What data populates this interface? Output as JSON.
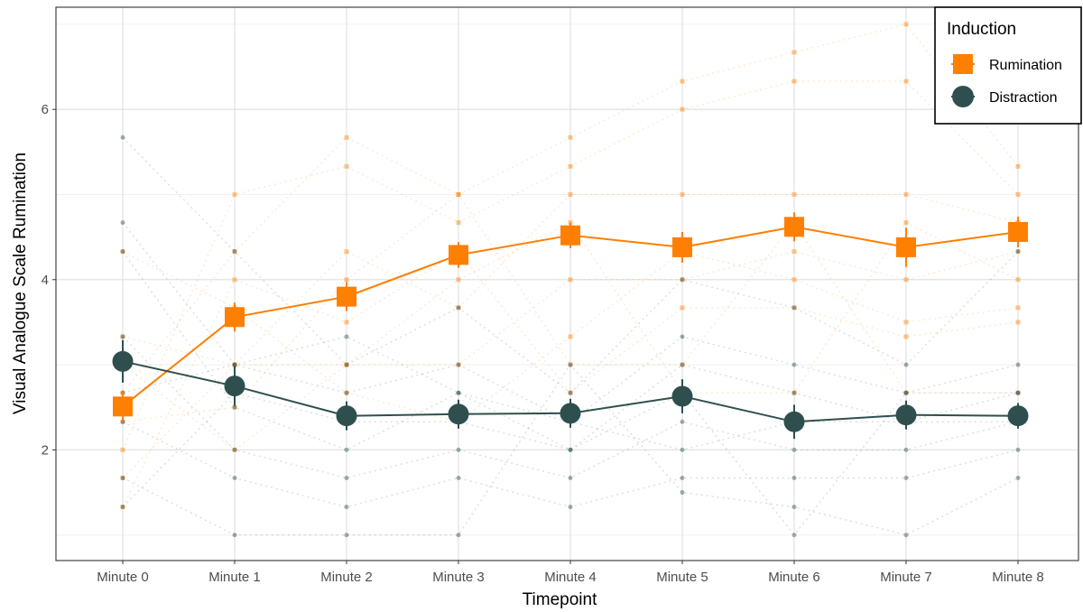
{
  "chart_data": {
    "type": "line",
    "title": "",
    "xlabel": "Timepoint",
    "ylabel": "Visual Analogue Scale Rumination",
    "categories": [
      "Minute 0",
      "Minute 1",
      "Minute 2",
      "Minute 3",
      "Minute 4",
      "Minute 5",
      "Minute 6",
      "Minute 7",
      "Minute 8"
    ],
    "ylim": [
      0.7,
      7.2
    ],
    "yticks": [
      2,
      4,
      6
    ],
    "ytick_labels": [
      "2",
      "4",
      "6"
    ],
    "grid": true,
    "legend": {
      "title": "Induction",
      "position": "top-right"
    },
    "series": [
      {
        "name": "Rumination",
        "color": "#ff7f00",
        "marker": "square",
        "values": [
          2.51,
          3.56,
          3.8,
          4.29,
          4.52,
          4.38,
          4.62,
          4.38,
          4.56
        ],
        "error": [
          0.17,
          0.17,
          0.17,
          0.15,
          0.15,
          0.18,
          0.17,
          0.23,
          0.18
        ]
      },
      {
        "name": "Distraction",
        "color": "#2f4f4f",
        "marker": "circle",
        "values": [
          3.04,
          2.75,
          2.4,
          2.42,
          2.43,
          2.63,
          2.33,
          2.41,
          2.4
        ],
        "error": [
          0.25,
          0.23,
          0.17,
          0.17,
          0.17,
          0.2,
          0.2,
          0.17,
          0.15
        ]
      }
    ],
    "individual_points": {
      "Rumination": [
        [
          2.67,
          2.0,
          1.67,
          3.0,
          4.33,
          1.33,
          2.33,
          3.33
        ],
        [
          4.33,
          5.0,
          3.0,
          2.0,
          3.67,
          4.0,
          2.5,
          3.0
        ],
        [
          5.67,
          5.33,
          4.33,
          3.0,
          2.67,
          3.5,
          4.0,
          3.0
        ],
        [
          5.0,
          4.67,
          3.67,
          3.0,
          2.33,
          4.33,
          5.0,
          4.0
        ],
        [
          5.67,
          5.33,
          5.0,
          4.0,
          3.33,
          2.67,
          3.0,
          4.67
        ],
        [
          6.33,
          6.0,
          5.0,
          4.0,
          4.33,
          3.67,
          3.0,
          2.67
        ],
        [
          6.67,
          6.33,
          5.0,
          4.33,
          4.0,
          3.67,
          4.67,
          2.67
        ],
        [
          7.0,
          6.33,
          5.0,
          4.0,
          3.5,
          3.33,
          2.67,
          4.67
        ],
        [
          5.33,
          5.0,
          4.67,
          4.33,
          3.67,
          3.5,
          2.67,
          4.0
        ]
      ],
      "Distraction": [
        [
          5.67,
          4.67,
          4.33,
          3.33,
          2.33,
          1.67,
          1.33,
          2.67
        ],
        [
          4.33,
          3.0,
          2.5,
          2.0,
          1.67,
          1.0,
          2.67,
          3.0
        ],
        [
          3.0,
          2.67,
          2.0,
          1.67,
          1.33,
          1.0,
          2.33,
          3.33
        ],
        [
          3.67,
          3.0,
          2.67,
          2.0,
          1.67,
          1.0,
          2.33,
          2.67
        ],
        [
          2.67,
          2.33,
          2.0,
          1.67,
          1.33,
          3.0,
          2.0,
          2.33
        ],
        [
          4.0,
          3.33,
          3.0,
          2.33,
          1.67,
          1.5,
          2.67,
          2.0
        ],
        [
          3.67,
          3.0,
          2.67,
          2.0,
          1.67,
          1.33,
          1.0,
          2.33
        ],
        [
          3.0,
          2.67,
          2.33,
          2.0,
          1.67,
          1.0,
          2.67,
          2.33
        ],
        [
          4.33,
          3.0,
          2.67,
          2.33,
          2.0,
          1.67,
          2.67,
          2.33
        ]
      ]
    }
  }
}
